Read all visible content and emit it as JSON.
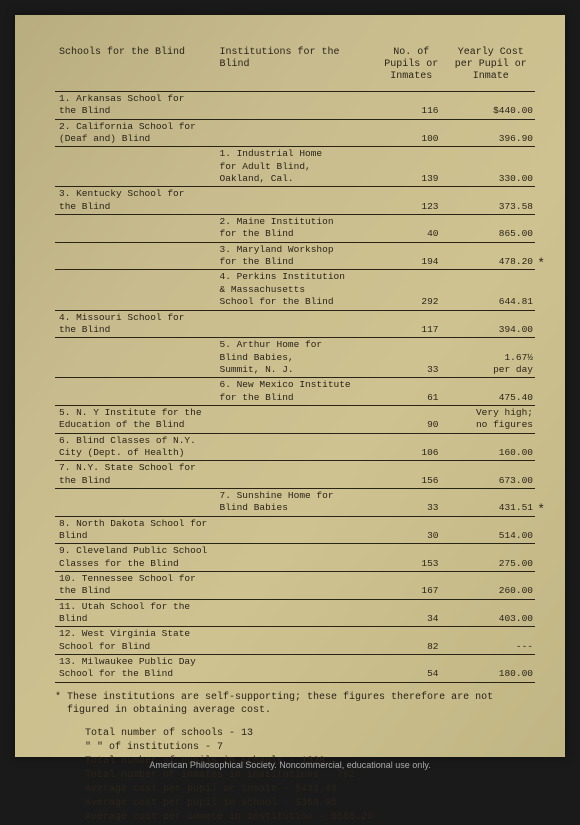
{
  "headers": {
    "col1": "Schools for the Blind",
    "col2": "Institutions for\nthe Blind",
    "col3": "No. of\nPupils\nor Inmates",
    "col4": "Yearly\nCost per\nPupil or\nInmate"
  },
  "rows": [
    {
      "c1": "1. Arkansas School for\n   the Blind",
      "c2": "",
      "c3": "116",
      "c4": "$440.00",
      "rule": true
    },
    {
      "c1": "2. California School for\n   (Deaf and) Blind",
      "c2": "",
      "c3": "100",
      "c4": "396.90",
      "rule": true
    },
    {
      "c1": "",
      "c2": "1. Industrial Home\n   for Adult Blind,\n   Oakland, Cal.",
      "c3": "139",
      "c4": "330.00",
      "rule": true
    },
    {
      "c1": "3. Kentucky School for\n   the Blind",
      "c2": "",
      "c3": "123",
      "c4": "373.58",
      "rule": true
    },
    {
      "c1": "",
      "c2": "2. Maine Institution\n   for the Blind",
      "c3": "40",
      "c4": "865.00",
      "rule": true
    },
    {
      "c1": "",
      "c2": "3. Maryland Workshop\n   for the Blind",
      "c3": "194",
      "c4": "478.20",
      "rule": true,
      "star": true
    },
    {
      "c1": "",
      "c2": "4. Perkins Institution\n   & Massachusetts\n   School for the Blind",
      "c3": "292",
      "c4": "644.81",
      "rule": true
    },
    {
      "c1": "4. Missouri School for\n   the Blind",
      "c2": "",
      "c3": "117",
      "c4": "394.00",
      "rule": true
    },
    {
      "c1": "",
      "c2": "5. Arthur Home for\n   Blind Babies,\n   Summit, N. J.",
      "c3": "33",
      "c4": "1.67½\nper day",
      "rule": true
    },
    {
      "c1": "",
      "c2": "6. New Mexico Institute\n   for the Blind",
      "c3": "61",
      "c4": "475.40",
      "rule": true
    },
    {
      "c1": "5. N. Y Institute for the\n   Education of the Blind",
      "c2": "",
      "c3": "90",
      "c4": "Very high;\nno figures",
      "rule": true
    },
    {
      "c1": "6. Blind Classes of N.Y.\n   City (Dept. of Health)",
      "c2": "",
      "c3": "106",
      "c4": "160.00",
      "rule": true
    },
    {
      "c1": "7. N.Y. State School for\n   the Blind",
      "c2": "",
      "c3": "156",
      "c4": "673.00",
      "rule": true
    },
    {
      "c1": "",
      "c2": "7. Sunshine Home for\n   Blind Babies",
      "c3": "33",
      "c4": "431.51",
      "rule": true,
      "star": true
    },
    {
      "c1": "8. North Dakota School for\n   Blind",
      "c2": "",
      "c3": "30",
      "c4": "514.00",
      "rule": true
    },
    {
      "c1": "9. Cleveland Public School\n   Classes for the Blind",
      "c2": "",
      "c3": "153",
      "c4": "275.00",
      "rule": true
    },
    {
      "c1": "10. Tennessee School for\n    the Blind",
      "c2": "",
      "c3": "167",
      "c4": "260.00",
      "rule": true
    },
    {
      "c1": "11. Utah School for the\n    Blind",
      "c2": "",
      "c3": "34",
      "c4": "403.00",
      "rule": true
    },
    {
      "c1": "12. West Virginia State\n    School for Blind",
      "c2": "",
      "c3": "82",
      "c4": "---",
      "rule": true
    },
    {
      "c1": "13. Milwaukee Public Day\n    School for the Blind",
      "c2": "",
      "c3": "54",
      "c4": "180.00",
      "rule": true
    }
  ],
  "footnote": "* These institutions are self-supporting; these figures therefore are not figured in obtaining average cost.",
  "summary": [
    "Total number of schools - 13",
    "  \"     \"    of institutions - 7",
    "Total number of pupils in schools - 1328",
    "Total number of inmates in institutions -  792",
    "Average cost per pupil or inmate - $433.46",
    "Average cost per pupil in school - $369.95",
    "Average cost per inmate in institution -  $585.29"
  ],
  "caption": "American Philosophical Society.  Noncommercial, educational use only."
}
